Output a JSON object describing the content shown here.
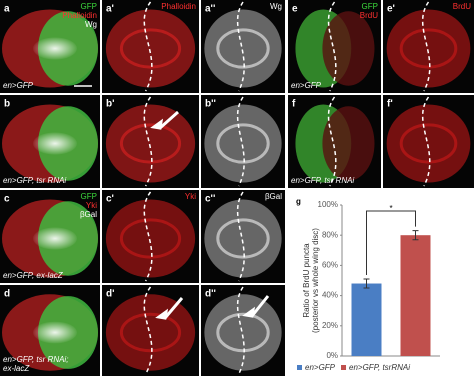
{
  "panels": [
    {
      "label": "a",
      "channels": [
        {
          "text": "GFP",
          "color": "#3ddc3d"
        },
        {
          "text": "Phalloidin",
          "color": "#ff3030"
        },
        {
          "text": "Wg",
          "color": "#ffffff"
        }
      ],
      "genotype": [
        "en>GFP"
      ]
    },
    {
      "label": "a'",
      "channels": [
        {
          "text": "Phalloidin",
          "color": "#ff3030"
        }
      ],
      "genotype": []
    },
    {
      "label": "a''",
      "channels": [
        {
          "text": "Wg",
          "color": "#ffffff"
        }
      ],
      "genotype": []
    },
    {
      "label": "e",
      "channels": [
        {
          "text": "GFP",
          "color": "#3ddc3d"
        },
        {
          "text": "BrdU",
          "color": "#ff3030"
        }
      ],
      "genotype": [
        "en>GFP"
      ]
    },
    {
      "label": "e'",
      "channels": [
        {
          "text": "BrdU",
          "color": "#ff3030"
        }
      ],
      "genotype": []
    },
    {
      "label": "b",
      "channels": [],
      "genotype": [
        "en>GFP, tsr RNAi"
      ]
    },
    {
      "label": "b'",
      "channels": [],
      "genotype": []
    },
    {
      "label": "b''",
      "channels": [],
      "genotype": []
    },
    {
      "label": "f",
      "channels": [],
      "genotype": [
        "en>GFP, tsr RNAi"
      ]
    },
    {
      "label": "f'",
      "channels": [],
      "genotype": []
    },
    {
      "label": "c",
      "channels": [
        {
          "text": "GFP",
          "color": "#3ddc3d"
        },
        {
          "text": "Yki",
          "color": "#ff3030"
        },
        {
          "text": "βGal",
          "color": "#ffffff"
        }
      ],
      "genotype": [
        "en>GFP, ex-lacZ"
      ]
    },
    {
      "label": "c'",
      "channels": [
        {
          "text": "Yki",
          "color": "#ff3030"
        }
      ],
      "genotype": []
    },
    {
      "label": "c''",
      "channels": [
        {
          "text": "βGal",
          "color": "#ffffff"
        }
      ],
      "genotype": []
    },
    {
      "label": "d",
      "channels": [],
      "genotype": [
        "en>GFP, tsr RNAi;",
        "ex-lacZ"
      ]
    },
    {
      "label": "d'",
      "channels": [],
      "genotype": []
    },
    {
      "label": "d''",
      "channels": [],
      "genotype": []
    }
  ],
  "chart_data": {
    "type": "bar",
    "panel_label": "g",
    "y_label": [
      "Ratio of BrdU puncta",
      "(posterior vs whole wing disc)"
    ],
    "categories": [
      "en>GFP",
      "en>GFP, tsrRNAi"
    ],
    "values": [
      48,
      80
    ],
    "errors": [
      3,
      3
    ],
    "colors": [
      "#4a7ec4",
      "#c0504d"
    ],
    "ylim": [
      0,
      100
    ],
    "yticks": [
      {
        "value": 0,
        "label": "0%"
      },
      {
        "value": 20,
        "label": "20%"
      },
      {
        "value": 40,
        "label": "40%"
      },
      {
        "value": 60,
        "label": "60%"
      },
      {
        "value": 80,
        "label": "80%"
      },
      {
        "value": 100,
        "label": "100%"
      }
    ],
    "grid": false,
    "significance": "*"
  }
}
